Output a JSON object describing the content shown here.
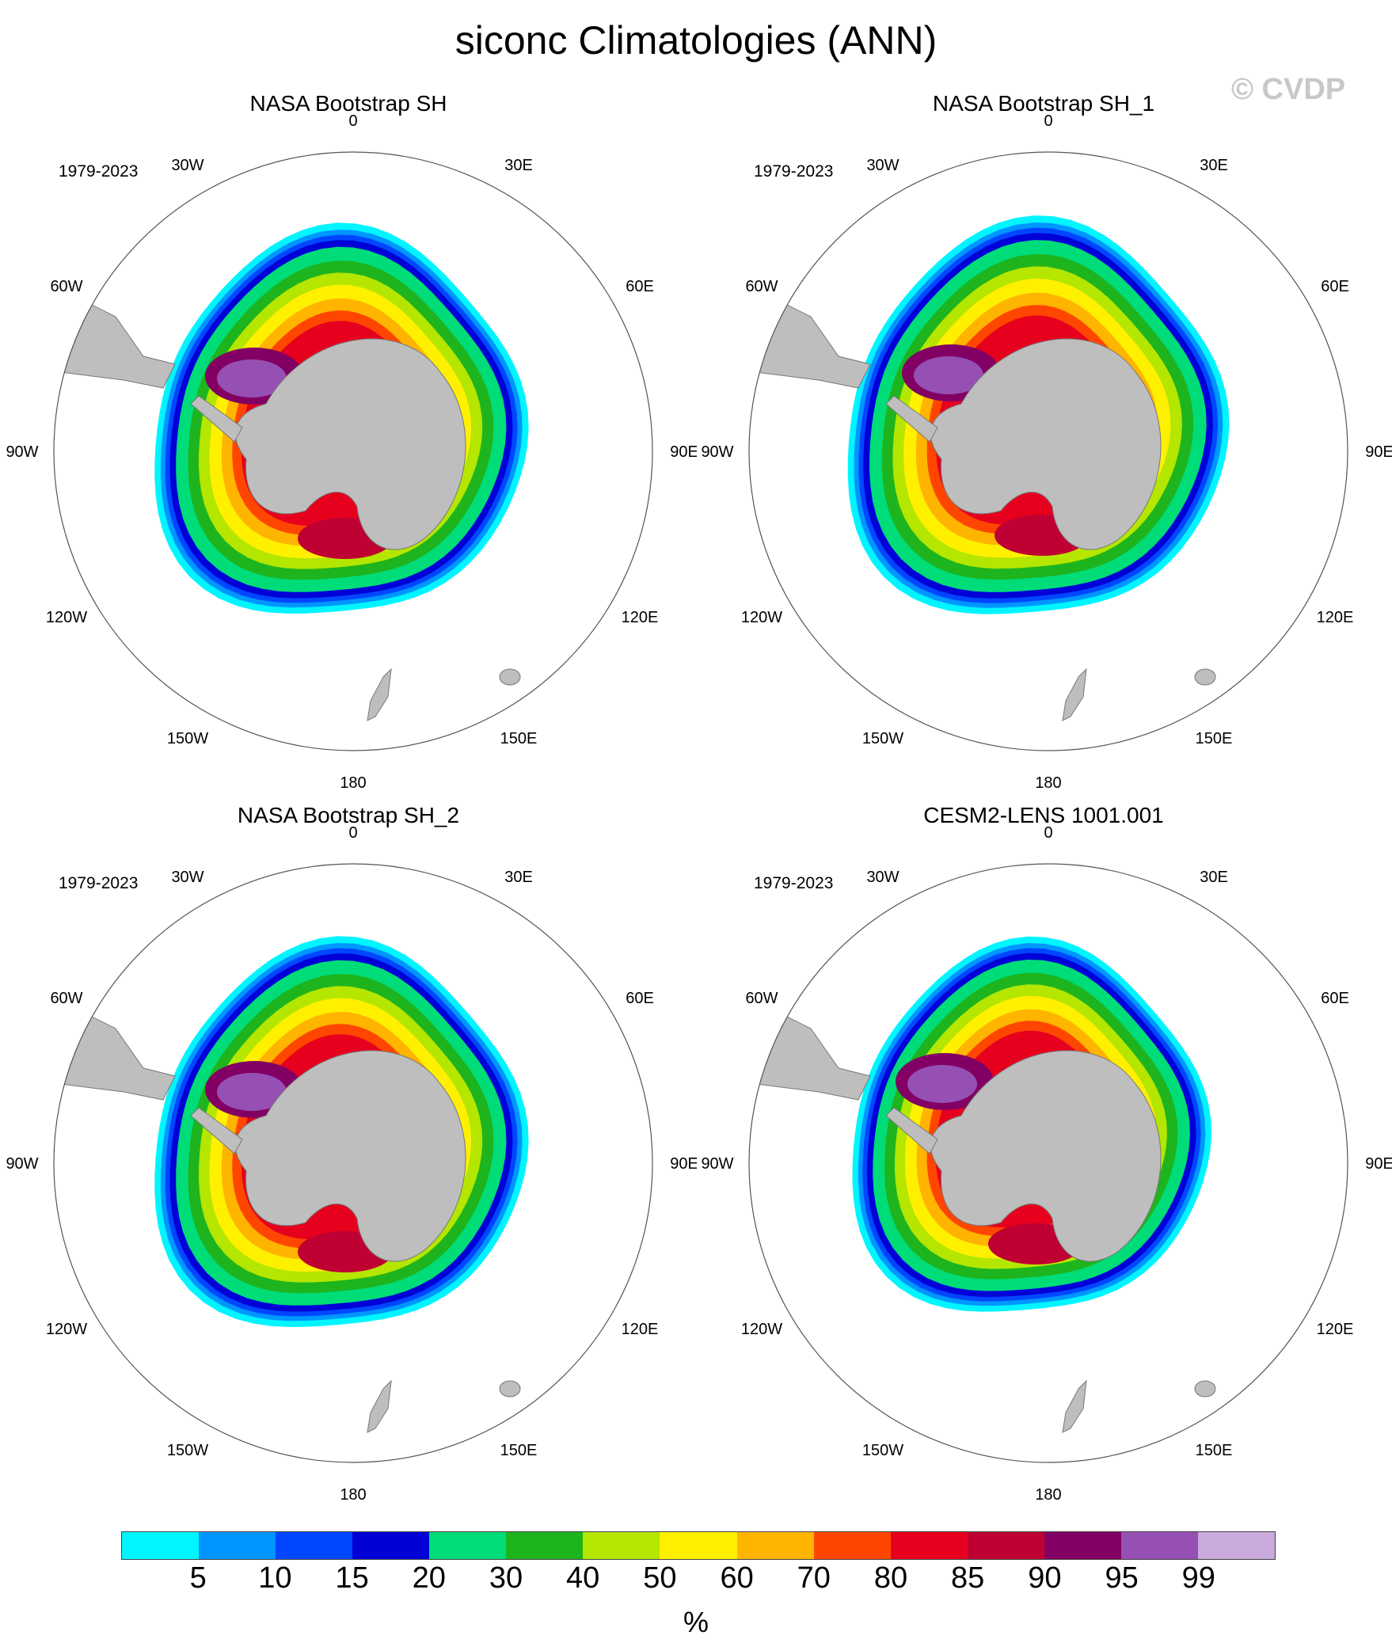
{
  "title": "siconc Climatologies (ANN)",
  "watermark": "© CVDP",
  "panels": [
    {
      "title": "NASA Bootstrap SH",
      "period": "1979-2023",
      "variant": "obs"
    },
    {
      "title": "NASA Bootstrap SH_1",
      "period": "1979-2023",
      "variant": "obs1"
    },
    {
      "title": "NASA Bootstrap SH_2",
      "period": "1979-2023",
      "variant": "obs2"
    },
    {
      "title": "CESM2-LENS 1001.001",
      "period": "1979-2023",
      "variant": "model"
    }
  ],
  "longitude_labels": [
    "0",
    "30E",
    "60E",
    "90E",
    "120E",
    "150E",
    "180",
    "150W",
    "120W",
    "90W",
    "60W",
    "30W"
  ],
  "colorbar": {
    "ticks": [
      "5",
      "10",
      "15",
      "20",
      "30",
      "40",
      "50",
      "60",
      "70",
      "80",
      "85",
      "90",
      "95",
      "99"
    ],
    "colors": [
      "#00f5ff",
      "#0096ff",
      "#0046ff",
      "#0000d7",
      "#00dc78",
      "#1eb41e",
      "#b4e600",
      "#fff000",
      "#ffb400",
      "#ff4600",
      "#e6001e",
      "#be0032",
      "#820064",
      "#9650b4",
      "#c8aadc"
    ],
    "unit": "%"
  },
  "colors": {
    "land": "#bebebe",
    "ocean": "#ffffff",
    "outline": "#555555"
  }
}
